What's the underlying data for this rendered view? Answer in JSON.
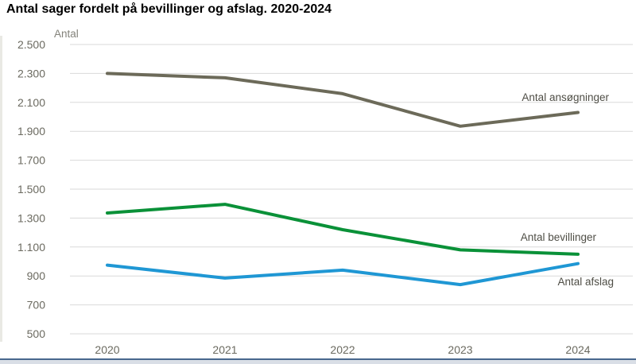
{
  "page": {
    "title": "Antal sager fordelt på bevillinger og afslag. 2020-2024"
  },
  "chart_data": {
    "type": "line",
    "title": "Antal sager fordelt på bevillinger og afslag. 2020-2024",
    "xlabel": "",
    "ylabel": "Antal",
    "x": [
      "2020",
      "2021",
      "2022",
      "2023",
      "2024"
    ],
    "series": [
      {
        "id": "antal-ansogninger",
        "name": "Antal ansøgninger",
        "color": "#6c6a59",
        "values": [
          2300,
          2270,
          2160,
          1935,
          2030
        ]
      },
      {
        "id": "antal-bevillinger",
        "name": "Antal bevillinger",
        "color": "#0a9138",
        "values": [
          1335,
          1395,
          1220,
          1080,
          1050
        ]
      },
      {
        "id": "antal-afslag",
        "name": "Antal afslag",
        "color": "#1f97d4",
        "values": [
          975,
          885,
          940,
          840,
          985
        ]
      }
    ],
    "ylim": [
      500,
      2500
    ],
    "grid": true,
    "legend_position": "inline-annotations",
    "y_ticks": [
      {
        "value": 2500,
        "label": "2.500"
      },
      {
        "value": 2300,
        "label": "2.300"
      },
      {
        "value": 2100,
        "label": "2.100"
      },
      {
        "value": 1900,
        "label": "1.900"
      },
      {
        "value": 1700,
        "label": "1.700"
      },
      {
        "value": 1500,
        "label": "1.500"
      },
      {
        "value": 1300,
        "label": "1.300"
      },
      {
        "value": 1100,
        "label": "1.100"
      },
      {
        "value": 900,
        "label": "900"
      },
      {
        "value": 700,
        "label": "700"
      },
      {
        "value": 500,
        "label": "500"
      }
    ],
    "annotations": [
      {
        "text": "Antal ansøgninger",
        "x": 766,
        "y": 127,
        "anchor": "end"
      },
      {
        "text": "Antal bevillinger",
        "x": 750,
        "y": 303,
        "anchor": "end"
      },
      {
        "text": "Antal afslag",
        "x": 772,
        "y": 359,
        "anchor": "end"
      }
    ]
  },
  "theme": {
    "grid_color": "#d9d9d9",
    "axis_text_color": "#6b6a60",
    "muted_text_color": "#83827a",
    "annotation_color": "#4f4e46",
    "title_color": "#000000",
    "left_strip_color": "#e9e9e4",
    "bottom_bar_fill": "#d9dee6",
    "bottom_bar_border": "#48678e"
  }
}
